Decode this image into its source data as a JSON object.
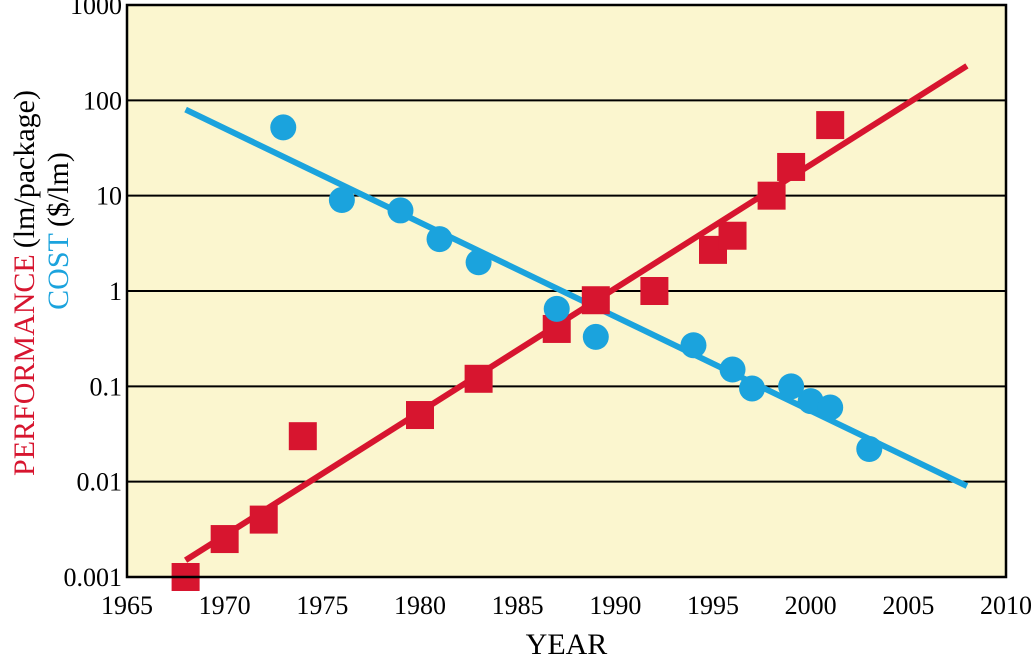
{
  "chart_data": {
    "type": "scatter",
    "title": "",
    "xlabel": "YEAR",
    "ylabel_parts": [
      "PERFORMANCE",
      "(lm/package)",
      "COST",
      "($/lm)"
    ],
    "xlim": [
      1965,
      2010
    ],
    "ylim": [
      0.001,
      1000
    ],
    "yscale": "log",
    "grid": "horizontal",
    "background": "#fbf6cf",
    "x_ticks": [
      1965,
      1970,
      1975,
      1980,
      1985,
      1990,
      1995,
      2000,
      2005,
      2010
    ],
    "y_ticks": [
      0.001,
      0.01,
      0.1,
      1,
      10,
      100,
      1000
    ],
    "y_tick_labels": [
      "0.001",
      "0.01",
      "0.1",
      "1",
      "10",
      "100",
      "1000"
    ],
    "colors": {
      "performance": "#d7152f",
      "cost": "#1ba3dd"
    },
    "series": [
      {
        "marker": "square",
        "color": "#d7152f",
        "points": [
          [
            1968,
            0.001
          ],
          [
            1970,
            0.0025
          ],
          [
            1972,
            0.004
          ],
          [
            1974,
            0.03
          ],
          [
            1980,
            0.05
          ],
          [
            1983,
            0.12
          ],
          [
            1987,
            0.4
          ],
          [
            1989,
            0.8
          ],
          [
            1992,
            1.0
          ],
          [
            1995,
            2.7
          ],
          [
            1996,
            3.8
          ],
          [
            1998,
            10
          ],
          [
            1999,
            20
          ],
          [
            2001,
            55
          ]
        ],
        "trend": [
          [
            1968,
            0.0015
          ],
          [
            2008,
            230
          ]
        ]
      },
      {
        "marker": "circle",
        "color": "#1ba3dd",
        "points": [
          [
            1973,
            52
          ],
          [
            1976,
            9
          ],
          [
            1979,
            7
          ],
          [
            1981,
            3.5
          ],
          [
            1983,
            2
          ],
          [
            1987,
            0.65
          ],
          [
            1989,
            0.33
          ],
          [
            1994,
            0.27
          ],
          [
            1996,
            0.15
          ],
          [
            1997,
            0.095
          ],
          [
            1999,
            0.1
          ],
          [
            2000,
            0.07
          ],
          [
            2001,
            0.06
          ],
          [
            2003,
            0.022
          ]
        ],
        "trend": [
          [
            1968,
            80
          ],
          [
            2008,
            0.009
          ]
        ]
      }
    ]
  }
}
